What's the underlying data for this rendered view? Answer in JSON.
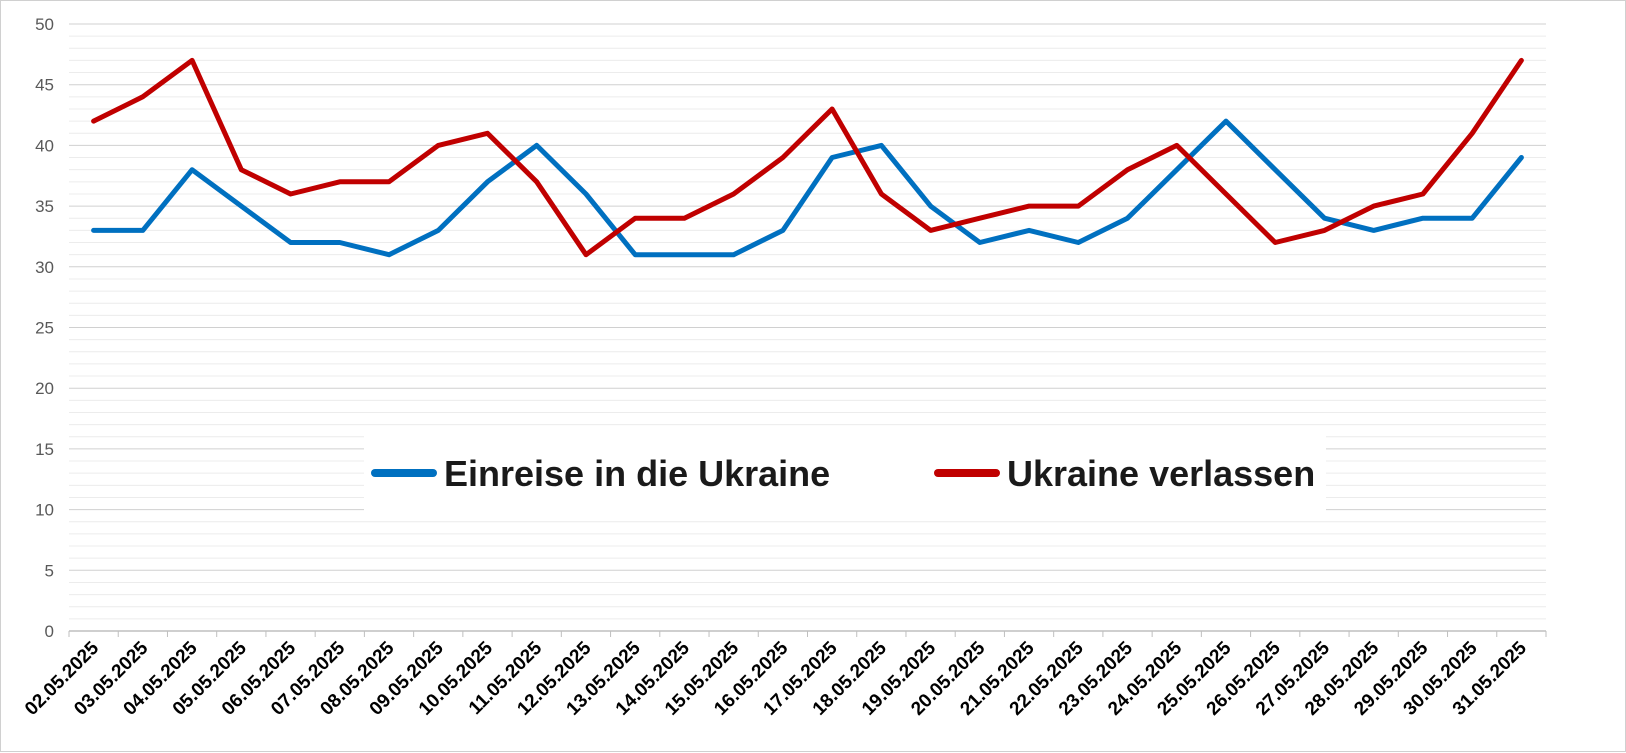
{
  "chart_data": {
    "type": "line",
    "categories": [
      "02.05.2025",
      "03.05.2025",
      "04.05.2025",
      "05.05.2025",
      "06.05.2025",
      "07.05.2025",
      "08.05.2025",
      "09.05.2025",
      "10.05.2025",
      "11.05.2025",
      "12.05.2025",
      "13.05.2025",
      "14.05.2025",
      "15.05.2025",
      "16.05.2025",
      "17.05.2025",
      "18.05.2025",
      "19.05.2025",
      "20.05.2025",
      "21.05.2025",
      "22.05.2025",
      "23.05.2025",
      "24.05.2025",
      "25.05.2025",
      "26.05.2025",
      "27.05.2025",
      "28.05.2025",
      "29.05.2025",
      "30.05.2025",
      "31.05.2025"
    ],
    "series": [
      {
        "name": "Einreise in die Ukraine",
        "color": "#0070C0",
        "values": [
          33,
          33,
          38,
          35,
          32,
          32,
          31,
          33,
          37,
          40,
          36,
          31,
          31,
          31,
          33,
          39,
          40,
          35,
          32,
          33,
          32,
          34,
          38,
          42,
          38,
          34,
          33,
          34,
          34,
          39
        ]
      },
      {
        "name": "Ukraine verlassen",
        "color": "#C00000",
        "values": [
          42,
          44,
          47,
          38,
          36,
          37,
          37,
          40,
          41,
          37,
          31,
          34,
          34,
          36,
          39,
          43,
          36,
          33,
          34,
          35,
          35,
          38,
          40,
          36,
          32,
          33,
          35,
          36,
          41,
          47
        ]
      }
    ],
    "ylim": [
      0,
      50
    ],
    "yticks": [
      0,
      5,
      10,
      15,
      20,
      25,
      30,
      35,
      40,
      45,
      50
    ],
    "title": "",
    "xlabel": "",
    "ylabel": "",
    "grid": true,
    "legend": "center"
  }
}
